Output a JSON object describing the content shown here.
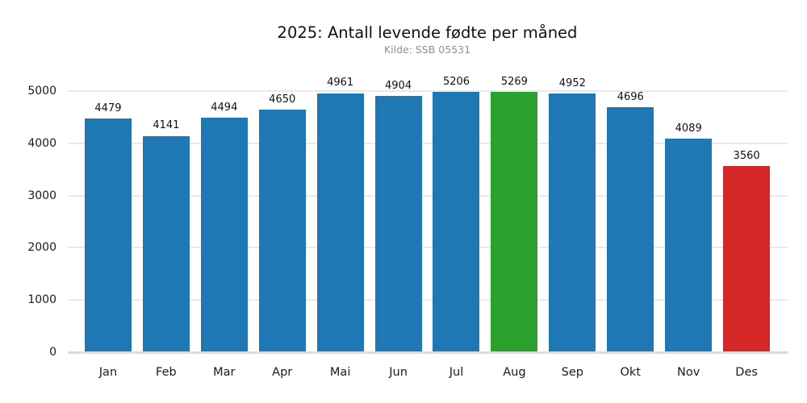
{
  "figure": {
    "title": "2025: Antall levende fødte per måned",
    "subtitle": "Kilde: SSB 05531"
  },
  "chart_data": {
    "type": "bar",
    "title": "2025: Antall levende fødte per måned",
    "subtitle": "Kilde: SSB 05531",
    "categories": [
      "Jan",
      "Feb",
      "Mar",
      "Apr",
      "Mai",
      "Jun",
      "Jul",
      "Aug",
      "Sep",
      "Okt",
      "Nov",
      "Des"
    ],
    "values": [
      4479,
      4141,
      4494,
      4650,
      4961,
      4904,
      5206,
      5269,
      4952,
      4696,
      4089,
      3560
    ],
    "bar_colors": [
      "#1f77b4",
      "#1f77b4",
      "#1f77b4",
      "#1f77b4",
      "#1f77b4",
      "#1f77b4",
      "#1f77b4",
      "#2ca02c",
      "#1f77b4",
      "#1f77b4",
      "#1f77b4",
      "#d62728"
    ],
    "highlight_max_color": "#2ca02c",
    "highlight_min_color": "#d62728",
    "default_bar_color": "#1f77b4",
    "value_labels_shown": true,
    "xlabel": "",
    "ylabel": "",
    "yticks": [
      0,
      1000,
      2000,
      3000,
      4000,
      5000
    ],
    "ylim": [
      0,
      5280
    ],
    "grid": "horizontal",
    "grid_color": "#e9e9e9",
    "axis_line_color": "#dcdcdc",
    "text_color": "#1a1a1a",
    "subtitle_color": "#909090",
    "background": "#ffffff",
    "legend": "none"
  }
}
